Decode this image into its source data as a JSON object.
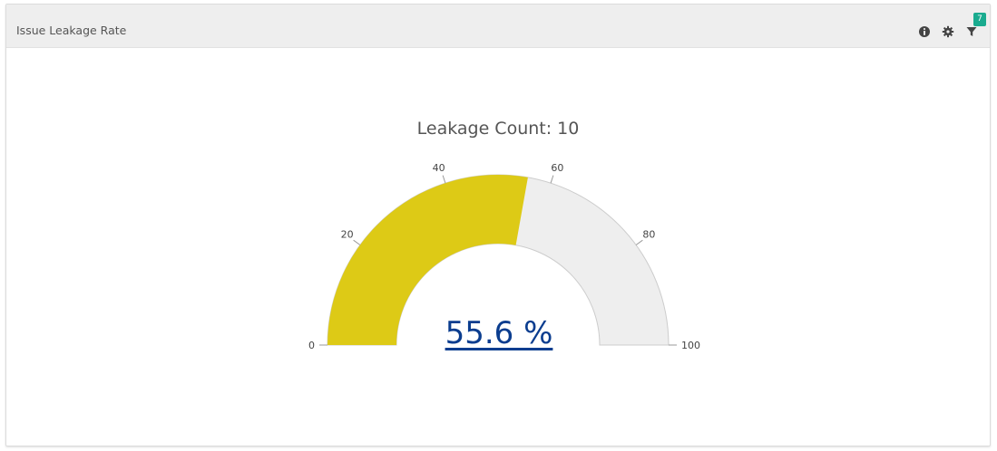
{
  "widget": {
    "title": "Issue Leakage Rate",
    "icons": [
      "info-icon",
      "gear-icon",
      "filter-icon"
    ],
    "filter_count": "7",
    "colors": {
      "header_bg": "#eeeeee",
      "badge": "#1aab8f",
      "gauge_fill": "#ddca16",
      "gauge_track": "#eeeeee",
      "value_text": "#0b3d8f"
    }
  },
  "chart_data": {
    "type": "gauge",
    "title": "Leakage Count: 10",
    "value": 55.6,
    "value_label": "55.6 %",
    "min": 0,
    "max": 100,
    "ticks": [
      "0",
      "20",
      "40",
      "60",
      "80",
      "100"
    ]
  }
}
